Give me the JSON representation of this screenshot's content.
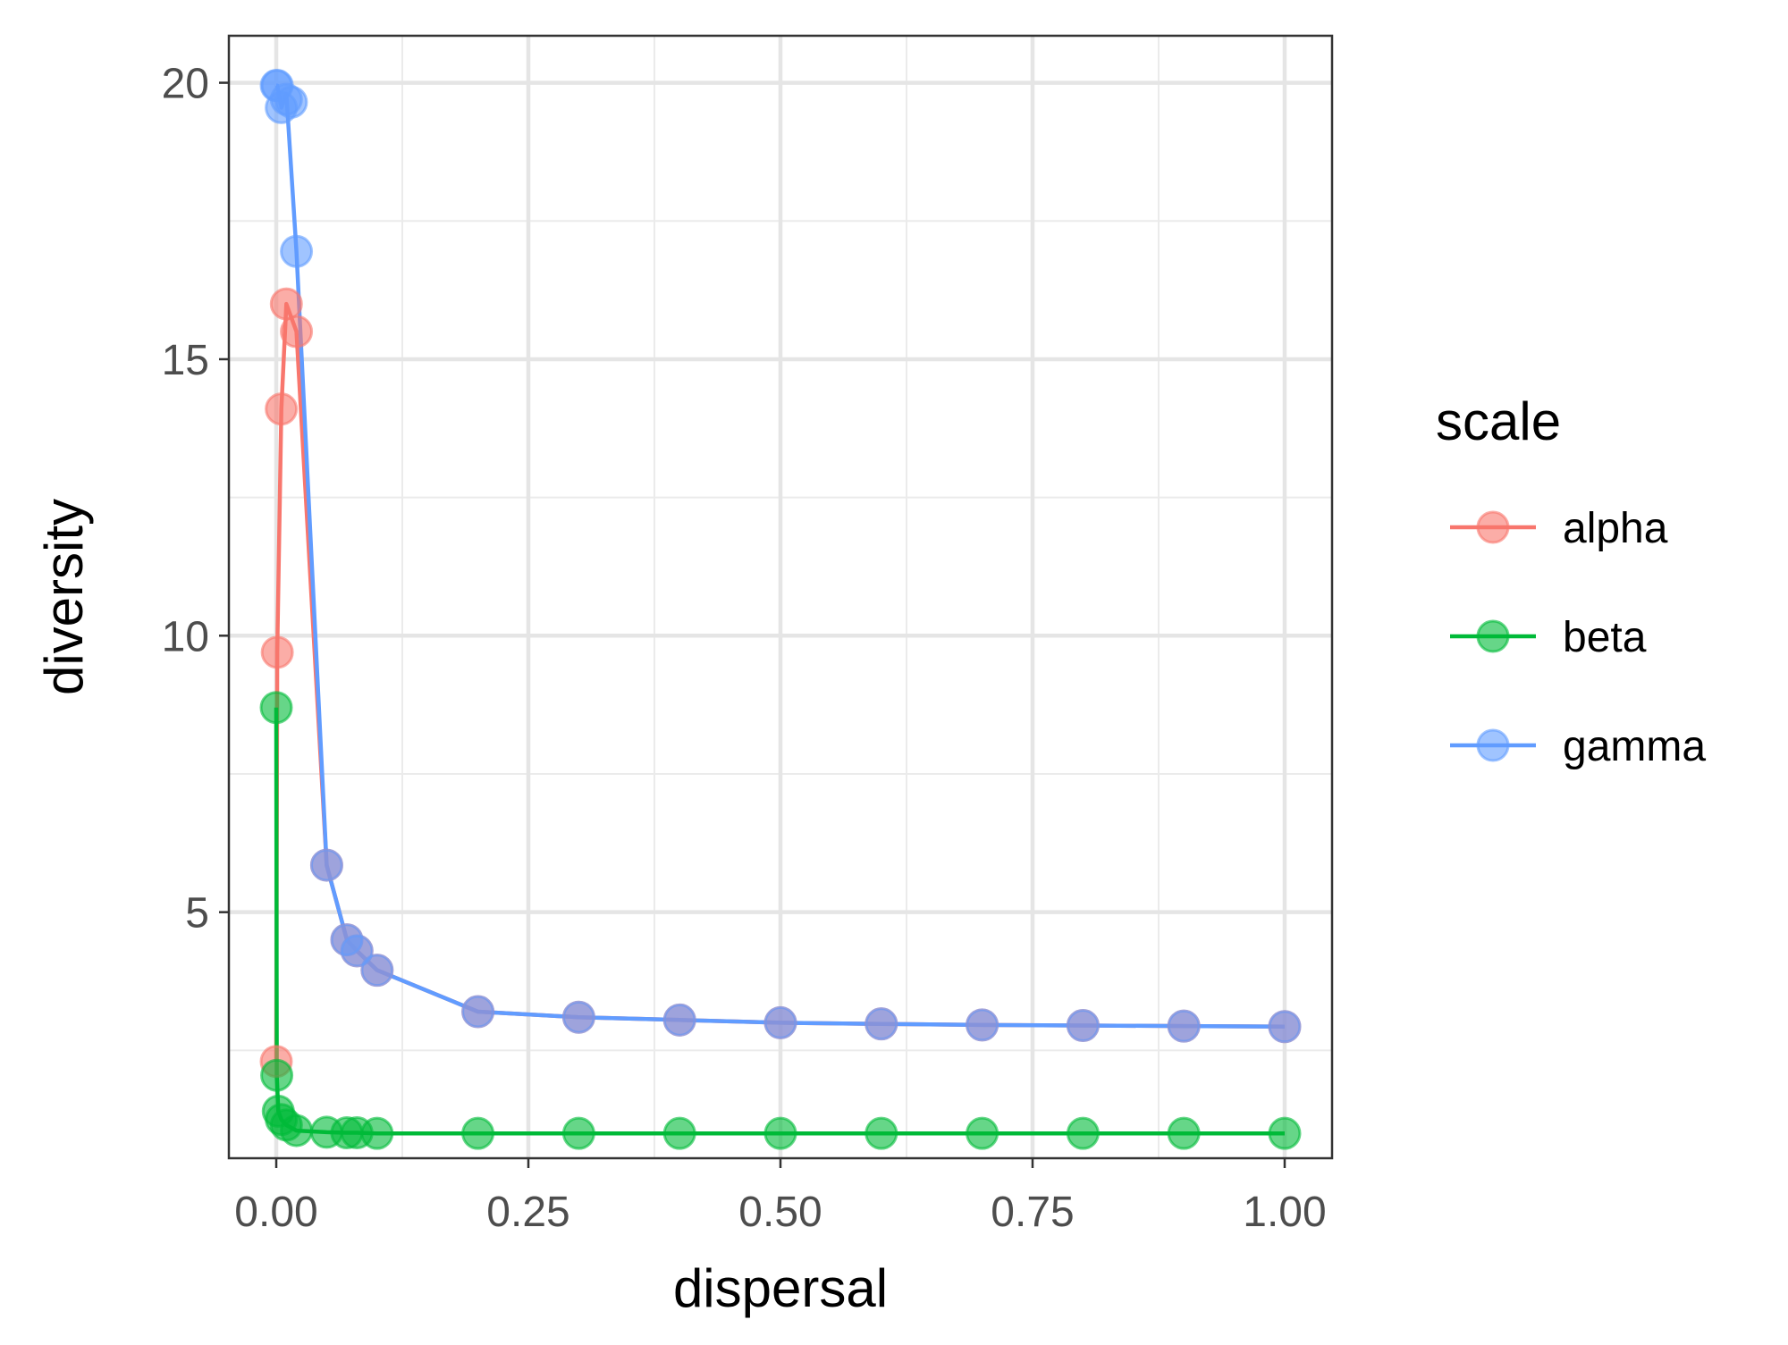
{
  "chart_data": {
    "type": "line",
    "xlabel": "dispersal",
    "ylabel": "diversity",
    "xlim": [
      -0.047,
      1.047
    ],
    "ylim": [
      0.55,
      20.85
    ],
    "x_ticks": [
      0.0,
      0.25,
      0.5,
      0.75,
      1.0
    ],
    "x_tick_labels": [
      "0.00",
      "0.25",
      "0.50",
      "0.75",
      "1.00"
    ],
    "y_ticks": [
      5,
      10,
      15,
      20
    ],
    "y_tick_labels": [
      "5",
      "10",
      "15",
      "20"
    ],
    "y_minor_ticks": [
      2.5,
      7.5,
      12.5,
      17.5
    ],
    "x_minor_ticks": [
      0.125,
      0.375,
      0.625,
      0.875
    ],
    "grid": true,
    "legend": {
      "title": "scale",
      "position": "right"
    },
    "series": [
      {
        "name": "alpha",
        "color": "#F8766D",
        "points": [
          [
            0,
            2.3
          ],
          [
            0.001,
            9.7
          ],
          [
            0.005,
            14.1
          ],
          [
            0.01,
            16.0
          ],
          [
            0.02,
            15.5
          ],
          [
            0.05,
            5.85
          ],
          [
            0.07,
            4.5
          ],
          [
            0.08,
            4.3
          ],
          [
            0.1,
            3.95
          ],
          [
            0.2,
            3.2
          ],
          [
            0.3,
            3.1
          ],
          [
            0.4,
            3.05
          ],
          [
            0.5,
            3.0
          ],
          [
            0.6,
            2.98
          ],
          [
            0.7,
            2.96
          ],
          [
            0.8,
            2.95
          ],
          [
            0.9,
            2.94
          ],
          [
            1.0,
            2.93
          ]
        ],
        "line": [
          [
            0,
            2.3
          ],
          [
            0.001,
            9.7
          ],
          [
            0.005,
            14.1
          ],
          [
            0.01,
            16.0
          ],
          [
            0.02,
            15.5
          ],
          [
            0.05,
            5.85
          ],
          [
            0.07,
            4.5
          ],
          [
            0.08,
            4.3
          ],
          [
            0.1,
            3.95
          ],
          [
            0.2,
            3.2
          ],
          [
            0.3,
            3.1
          ],
          [
            0.4,
            3.05
          ],
          [
            0.5,
            3.0
          ],
          [
            0.6,
            2.98
          ],
          [
            0.7,
            2.96
          ],
          [
            0.8,
            2.95
          ],
          [
            0.9,
            2.94
          ],
          [
            1.0,
            2.93
          ]
        ]
      },
      {
        "name": "beta",
        "color": "#00BA38",
        "points": [
          [
            0,
            8.7
          ],
          [
            0.0005,
            2.05
          ],
          [
            0.002,
            1.4
          ],
          [
            0.005,
            1.25
          ],
          [
            0.01,
            1.15
          ],
          [
            0.02,
            1.05
          ],
          [
            0.05,
            1.02
          ],
          [
            0.07,
            1.01
          ],
          [
            0.08,
            1.01
          ],
          [
            0.1,
            1.0
          ],
          [
            0.2,
            1.0
          ],
          [
            0.3,
            1.0
          ],
          [
            0.4,
            1.0
          ],
          [
            0.5,
            1.0
          ],
          [
            0.6,
            1.0
          ],
          [
            0.7,
            1.0
          ],
          [
            0.8,
            1.0
          ],
          [
            0.9,
            1.0
          ],
          [
            1.0,
            1.0
          ]
        ],
        "line": [
          [
            0,
            8.7
          ],
          [
            0.0005,
            2.05
          ],
          [
            0.002,
            1.4
          ],
          [
            0.005,
            1.25
          ],
          [
            0.01,
            1.15
          ],
          [
            0.02,
            1.05
          ],
          [
            0.05,
            1.02
          ],
          [
            0.07,
            1.01
          ],
          [
            0.08,
            1.01
          ],
          [
            0.1,
            1.0
          ],
          [
            0.2,
            1.0
          ],
          [
            0.3,
            1.0
          ],
          [
            0.4,
            1.0
          ],
          [
            0.5,
            1.0
          ],
          [
            0.6,
            1.0
          ],
          [
            0.7,
            1.0
          ],
          [
            0.8,
            1.0
          ],
          [
            0.9,
            1.0
          ],
          [
            1.0,
            1.0
          ]
        ]
      },
      {
        "name": "gamma",
        "color": "#619CFF",
        "points": [
          [
            0,
            19.95
          ],
          [
            0.001,
            19.95
          ],
          [
            0.005,
            19.55
          ],
          [
            0.01,
            19.7
          ],
          [
            0.015,
            19.65
          ],
          [
            0.02,
            16.95
          ],
          [
            0.05,
            5.85
          ],
          [
            0.07,
            4.5
          ],
          [
            0.08,
            4.3
          ],
          [
            0.1,
            3.95
          ],
          [
            0.2,
            3.2
          ],
          [
            0.3,
            3.1
          ],
          [
            0.4,
            3.05
          ],
          [
            0.5,
            3.0
          ],
          [
            0.6,
            2.98
          ],
          [
            0.7,
            2.96
          ],
          [
            0.8,
            2.95
          ],
          [
            0.9,
            2.94
          ],
          [
            1.0,
            2.93
          ]
        ],
        "line": [
          [
            0,
            19.95
          ],
          [
            0.001,
            19.95
          ],
          [
            0.005,
            19.55
          ],
          [
            0.01,
            19.8
          ],
          [
            0.02,
            16.95
          ],
          [
            0.05,
            5.85
          ],
          [
            0.07,
            4.5
          ],
          [
            0.08,
            4.3
          ],
          [
            0.1,
            3.95
          ],
          [
            0.2,
            3.2
          ],
          [
            0.3,
            3.1
          ],
          [
            0.4,
            3.05
          ],
          [
            0.5,
            3.0
          ],
          [
            0.6,
            2.98
          ],
          [
            0.7,
            2.96
          ],
          [
            0.8,
            2.95
          ],
          [
            0.9,
            2.94
          ],
          [
            1.0,
            2.93
          ]
        ]
      }
    ]
  }
}
